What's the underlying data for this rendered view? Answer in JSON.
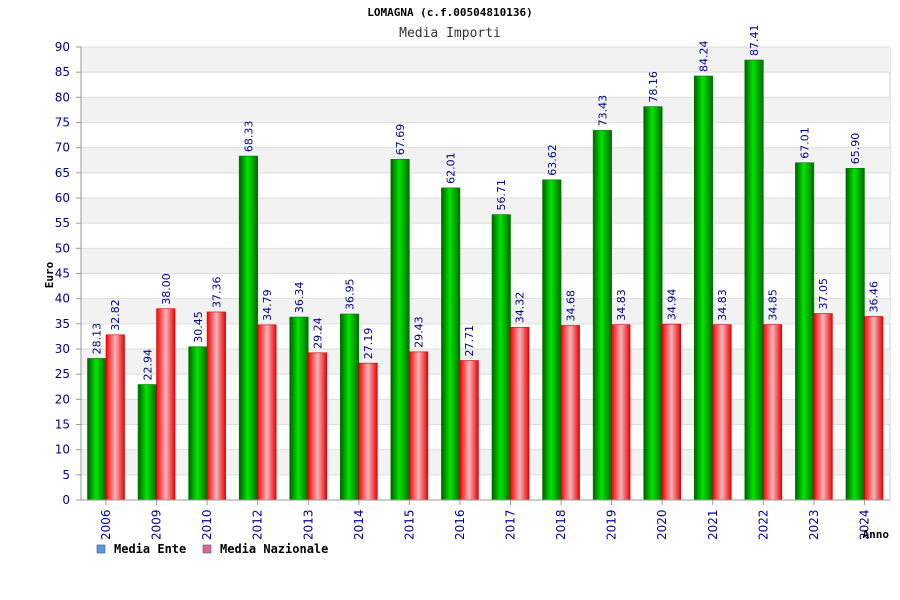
{
  "chart_data": {
    "type": "bar",
    "title": "LOMAGNA (c.f.00504810136)",
    "subtitle": "Media Importi",
    "xlabel": "Anno",
    "ylabel": "Euro",
    "ylim": [
      0,
      90
    ],
    "ytick_step": 5,
    "grid": true,
    "legend_position": "bottom-left",
    "categories": [
      "2006",
      "2009",
      "2010",
      "2012",
      "2013",
      "2014",
      "2015",
      "2016",
      "2017",
      "2018",
      "2019",
      "2020",
      "2021",
      "2022",
      "2023",
      "2024"
    ],
    "series": [
      {
        "name": "Media Ente",
        "color": "#00cc00",
        "legend_color": "#5599ee",
        "values": [
          28.13,
          22.94,
          30.45,
          68.33,
          36.34,
          36.95,
          67.69,
          62.01,
          56.71,
          63.62,
          73.43,
          78.16,
          84.24,
          87.41,
          67.01,
          65.9
        ],
        "labels": [
          "28.13",
          "22.94",
          "30.45",
          "68.33",
          "36.34",
          "36.95",
          "67.69",
          "62.01",
          "56.71",
          "63.62",
          "73.43",
          "78.16",
          "84.24",
          "87.41",
          "67.01",
          "65.90"
        ]
      },
      {
        "name": "Media Nazionale",
        "color": "#ee2233",
        "legend_color": "#dd6699",
        "values": [
          32.82,
          38.0,
          37.36,
          34.79,
          29.24,
          27.19,
          29.43,
          27.71,
          34.32,
          34.68,
          34.83,
          34.94,
          34.83,
          34.85,
          37.05,
          36.46
        ],
        "labels": [
          "32.82",
          "38.00",
          "37.36",
          "34.79",
          "29.24",
          "27.19",
          "29.43",
          "27.71",
          "34.32",
          "34.68",
          "34.83",
          "34.94",
          "34.83",
          "34.85",
          "37.05",
          "36.46"
        ]
      }
    ]
  }
}
